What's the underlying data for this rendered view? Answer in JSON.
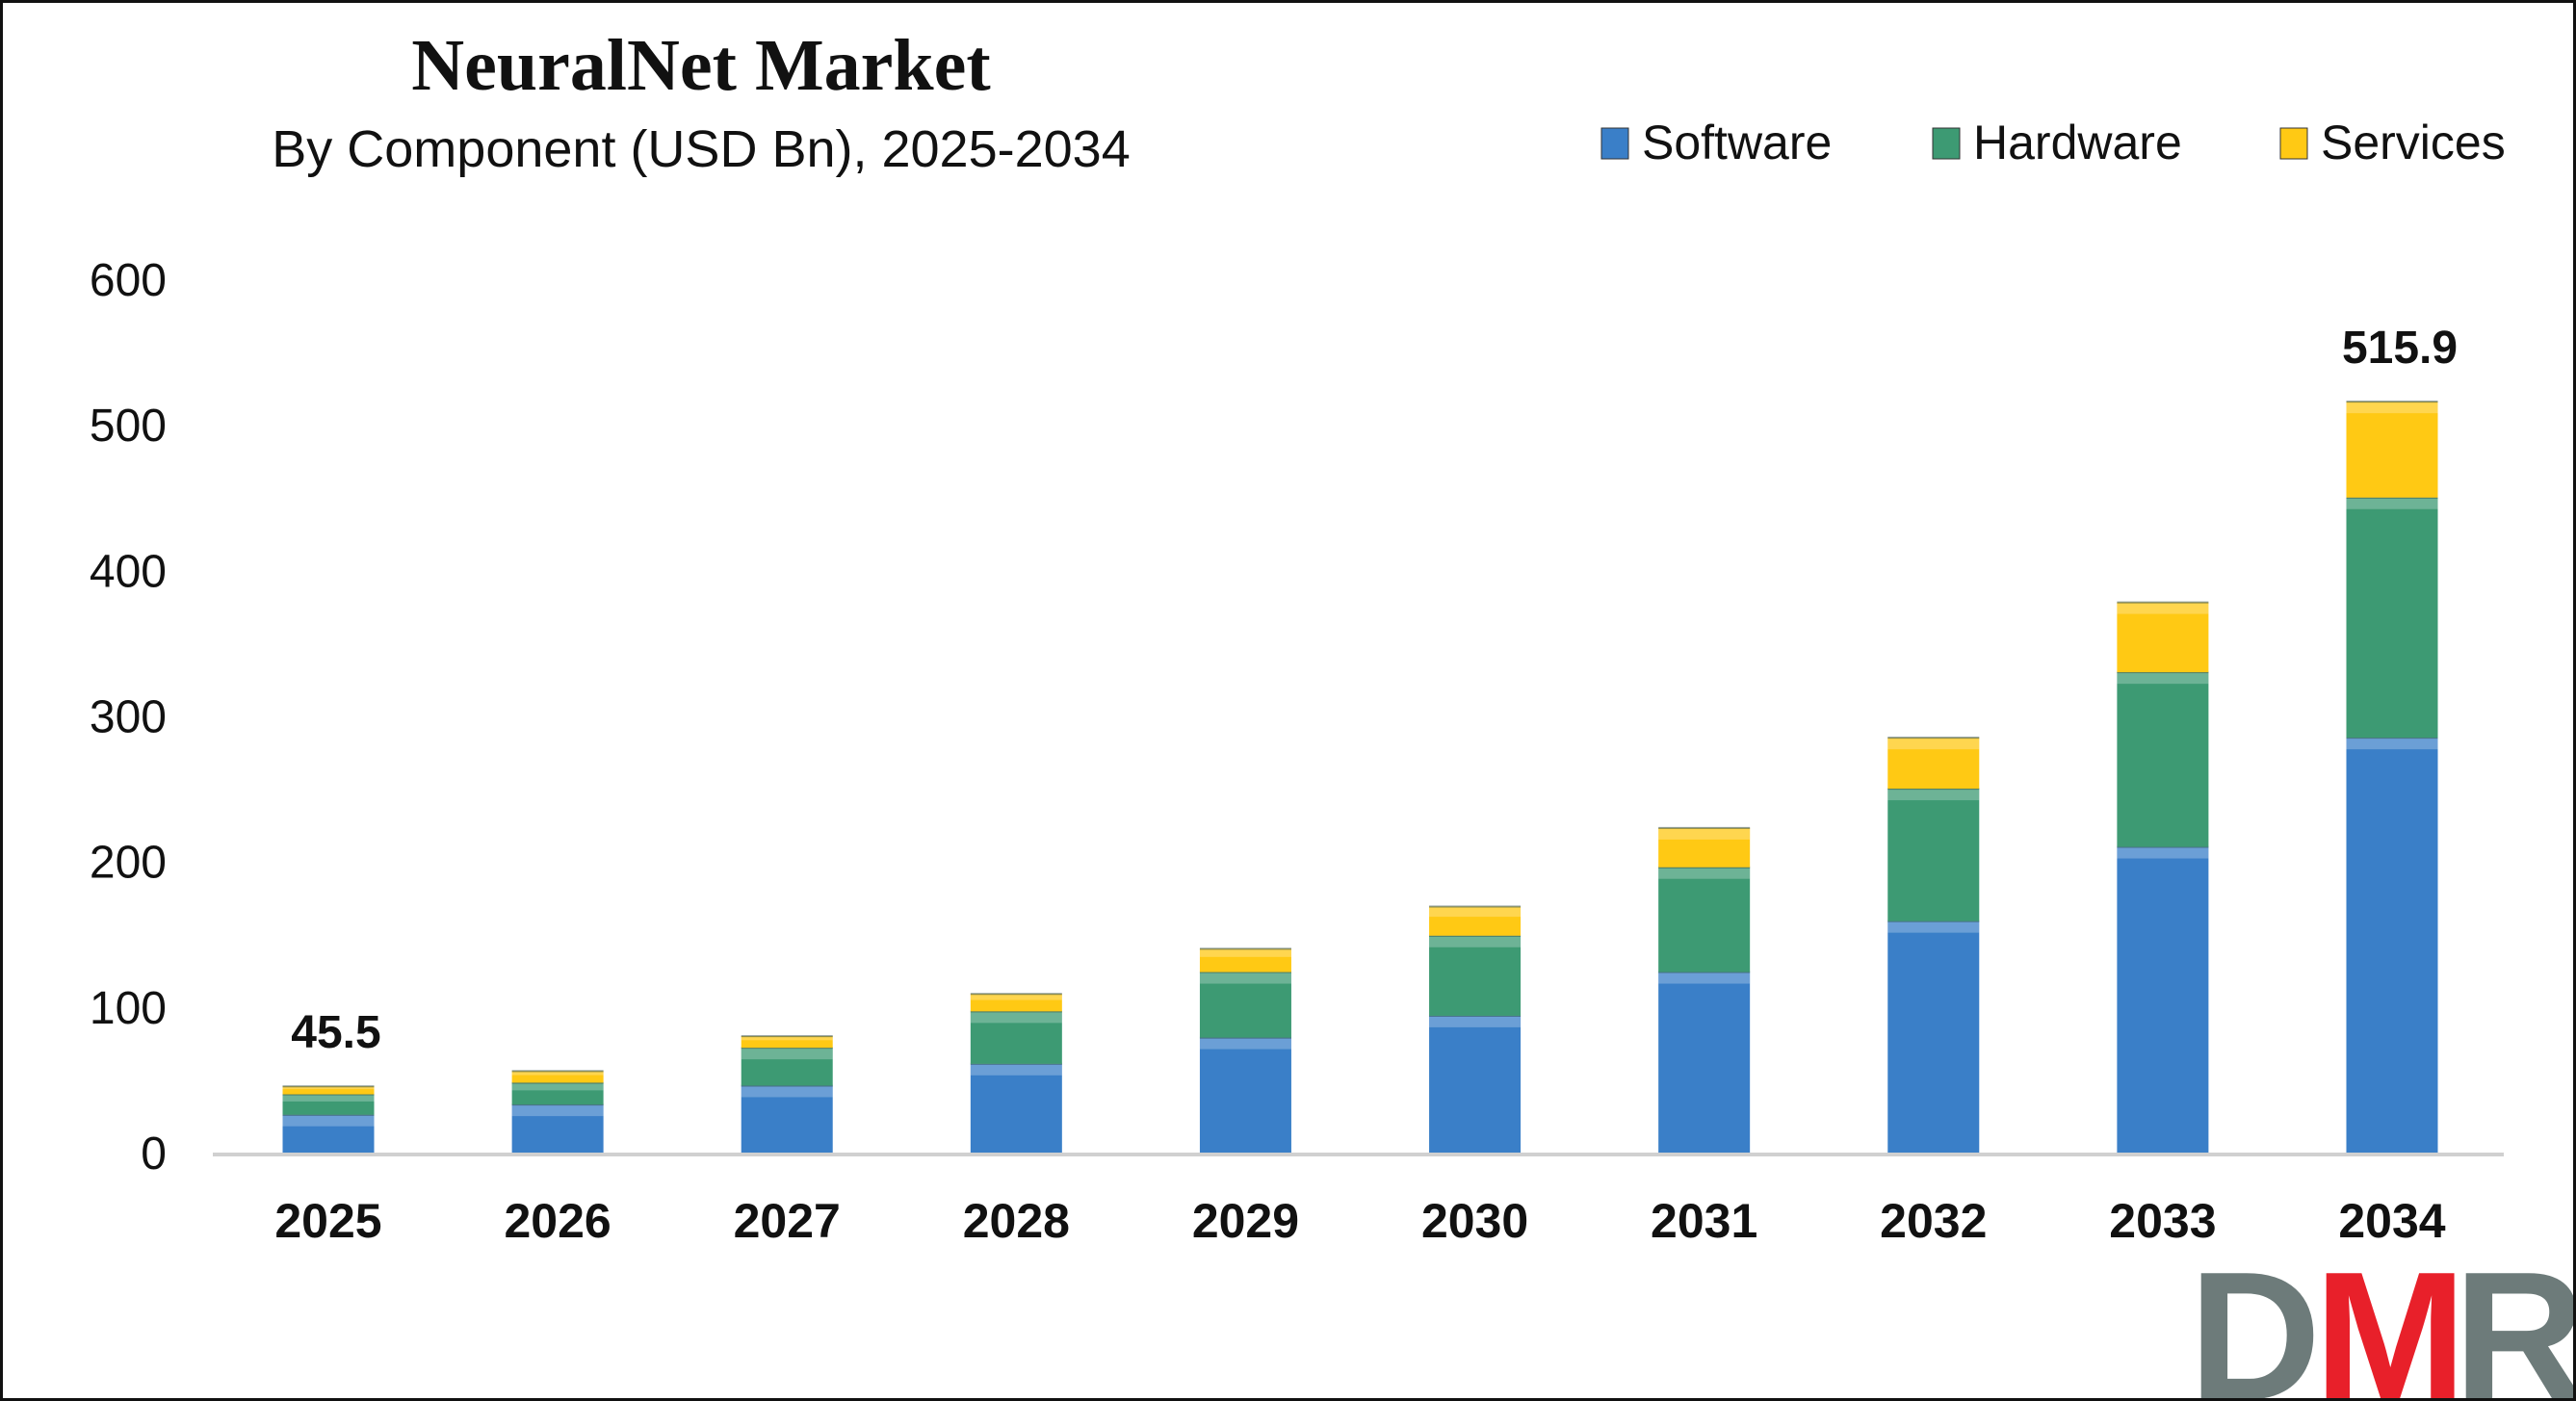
{
  "chart_data": {
    "type": "bar",
    "stacked": true,
    "title": "NeuralNet Market",
    "subtitle": "By Component (USD Bn), 2025-2034",
    "xlabel": "",
    "ylabel": "",
    "ylim": [
      0,
      600
    ],
    "yticks": [
      0,
      100,
      200,
      300,
      400,
      500,
      600
    ],
    "grid": false,
    "legend_position": "top-right",
    "categories": [
      "2025",
      "2026",
      "2027",
      "2028",
      "2029",
      "2030",
      "2031",
      "2032",
      "2033",
      "2034"
    ],
    "series": [
      {
        "name": "Software",
        "color": "#3a7fc8",
        "values": [
          26,
          33,
          46,
          61,
          79,
          94,
          124,
          159,
          210,
          285
        ]
      },
      {
        "name": "Hardware",
        "color": "#3d9a73",
        "values": [
          14,
          15,
          26,
          36,
          45,
          55,
          72,
          91,
          120,
          165
        ]
      },
      {
        "name": "Services",
        "color": "#ffc914",
        "values": [
          5.5,
          8,
          8,
          12,
          16,
          20,
          27,
          35,
          48,
          65.9
        ]
      }
    ],
    "data_labels": [
      {
        "category": "2025",
        "text": "45.5"
      },
      {
        "category": "2034",
        "text": "515.9"
      }
    ]
  },
  "logo": {
    "text": "DMR",
    "colors": [
      "#6d7b7a",
      "#e8202a",
      "#6d7b7a"
    ]
  }
}
